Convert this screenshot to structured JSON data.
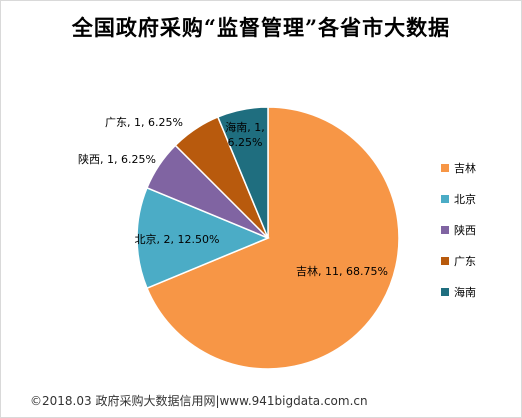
{
  "chart_data": {
    "type": "pie",
    "title": "全国政府采购“监督管理”各省市大数据",
    "slices": [
      {
        "name": "吉林",
        "value": 11,
        "percent": "68.75%",
        "color": "#F79646",
        "label": "吉林, 11, 68.75%"
      },
      {
        "name": "北京",
        "value": 2,
        "percent": "12.50%",
        "color": "#4BACC6",
        "label": "北京, 2, 12.50%"
      },
      {
        "name": "陕西",
        "value": 1,
        "percent": "6.25%",
        "color": "#8064A2",
        "label": "陕西, 1, 6.25%"
      },
      {
        "name": "广东",
        "value": 1,
        "percent": "6.25%",
        "color": "#C0504D",
        "label": "广东, 1, 6.25%"
      },
      {
        "name": "海南",
        "value": 1,
        "percent": "6.25%",
        "color": "#1F6E7F",
        "label_lines": [
          "海南, 1,",
          "6.25%"
        ]
      }
    ],
    "legend": [
      {
        "name": "吉林",
        "color": "#F79646"
      },
      {
        "name": "北京",
        "color": "#4BACC6"
      },
      {
        "name": "陕西",
        "color": "#8064A2"
      },
      {
        "name": "广东",
        "color": "#B85A0D"
      },
      {
        "name": "海南",
        "color": "#1F6E7F"
      }
    ],
    "legend_placement": "right",
    "grid": false
  },
  "footer": "©2018.03 政府采购大数据信用网|www.941bigdata.com.cn"
}
